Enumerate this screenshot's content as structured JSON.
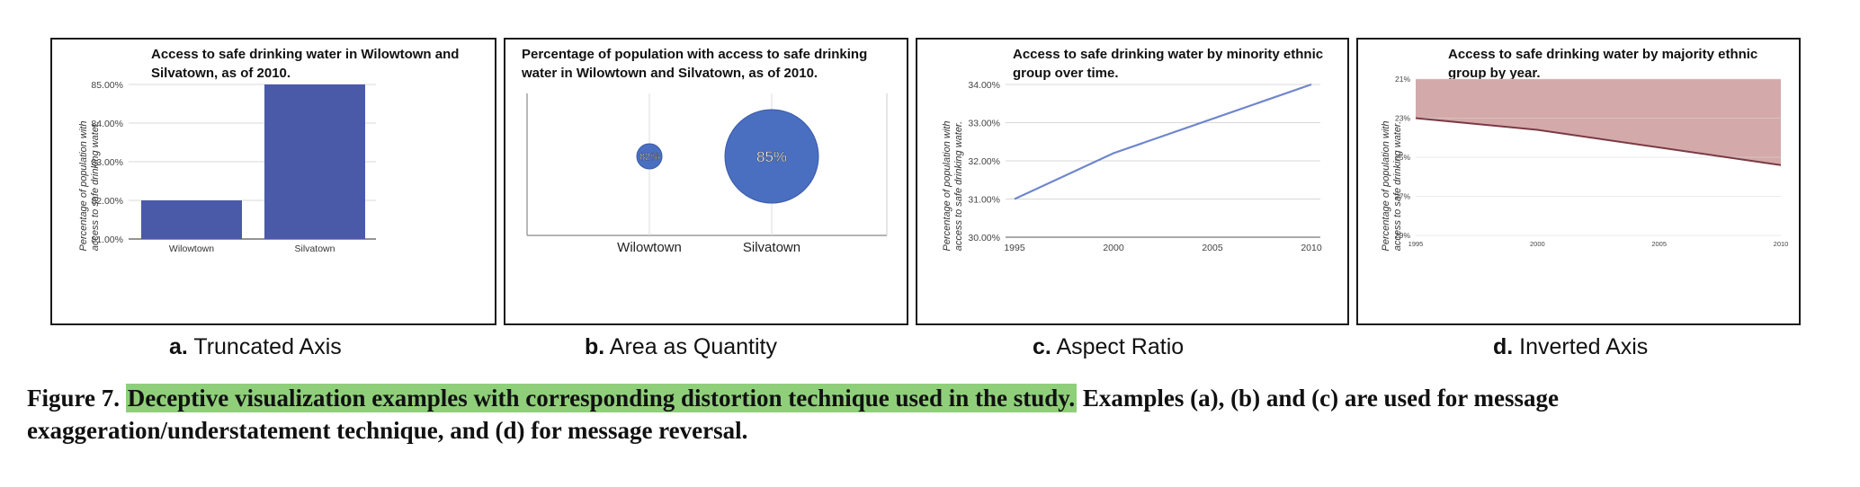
{
  "panels": [
    {
      "title": "Access to safe drinking water in Wilowtown and Silvatown, as of 2010.",
      "ylabel": "Percentage of population with access to safe drinking water.",
      "subcaption_letter": "a.",
      "subcaption_text": "Truncated Axis"
    },
    {
      "title": "Percentage of population with access to safe drinking water in Wilowtown and Silvatown, as of 2010.",
      "subcaption_letter": "b.",
      "subcaption_text": "Area as Quantity"
    },
    {
      "title": "Access to safe drinking water by minority ethnic group over time.",
      "ylabel": "Percentage of population with access to safe drinking water.",
      "subcaption_letter": "c.",
      "subcaption_text": "Aspect Ratio"
    },
    {
      "title": "Access to safe drinking water by majority ethnic group by year.",
      "ylabel": "Percentage of population with access to safe drinking water.",
      "subcaption_letter": "d.",
      "subcaption_text": "Inverted Axis"
    }
  ],
  "chart_data": [
    {
      "type": "bar",
      "title": "Access to safe drinking water in Wilowtown and Silvatown, as of 2010.",
      "ylabel": "Percentage of population with access to safe drinking water.",
      "categories": [
        "Wilowtown",
        "Silvatown"
      ],
      "values": [
        82,
        85
      ],
      "ylim": [
        81,
        85
      ],
      "yticks": [
        "85.00%",
        "84.00%",
        "83.00%",
        "82.00%",
        "81.00%"
      ],
      "grid": true,
      "color": "#4a5aa8"
    },
    {
      "type": "scatter",
      "title": "Percentage of population with access to safe drinking water in Wilowtown and Silvatown, as of 2010.",
      "categories": [
        "Wilowtown",
        "Silvatown"
      ],
      "values": [
        82,
        85
      ],
      "labels": [
        "82%",
        "85%"
      ],
      "color": "#4a6fc0"
    },
    {
      "type": "line",
      "title": "Access to safe drinking water by minority ethnic group over time.",
      "ylabel": "Percentage of population with access to safe drinking water.",
      "x": [
        1995,
        2000,
        2010
      ],
      "values": [
        31.0,
        32.2,
        34.0
      ],
      "xticks": [
        "1995",
        "2000",
        "2005",
        "2010"
      ],
      "yticks": [
        "34.00%",
        "33.00%",
        "32.00%",
        "31.00%",
        "30.00%"
      ],
      "xlim": [
        1995,
        2010
      ],
      "ylim": [
        30,
        34
      ],
      "grid": true,
      "color": "#6f86cc"
    },
    {
      "type": "area",
      "title": "Access to safe drinking water by majority ethnic group by year.",
      "ylabel": "Percentage of population with access to safe drinking water.",
      "x": [
        1995,
        2000,
        2010
      ],
      "values": [
        23.0,
        23.6,
        25.4
      ],
      "xticks": [
        "1995",
        "2000",
        "2005",
        "2010"
      ],
      "yticks": [
        "21%",
        "23%",
        "25%",
        "27%",
        "29%"
      ],
      "xlim": [
        1995,
        2010
      ],
      "ylim": [
        21,
        29
      ],
      "inverted_y": true,
      "grid": true,
      "color": "#d4a9a9",
      "line_color": "#7a3a44"
    }
  ],
  "caption": {
    "label": "Figure 7.",
    "highlighted": "Deceptive visualization examples with corresponding distortion technique used in the study.",
    "rest": "Examples (a), (b) and (c) are used for message exaggeration/understatement technique, and (d) for message reversal."
  }
}
